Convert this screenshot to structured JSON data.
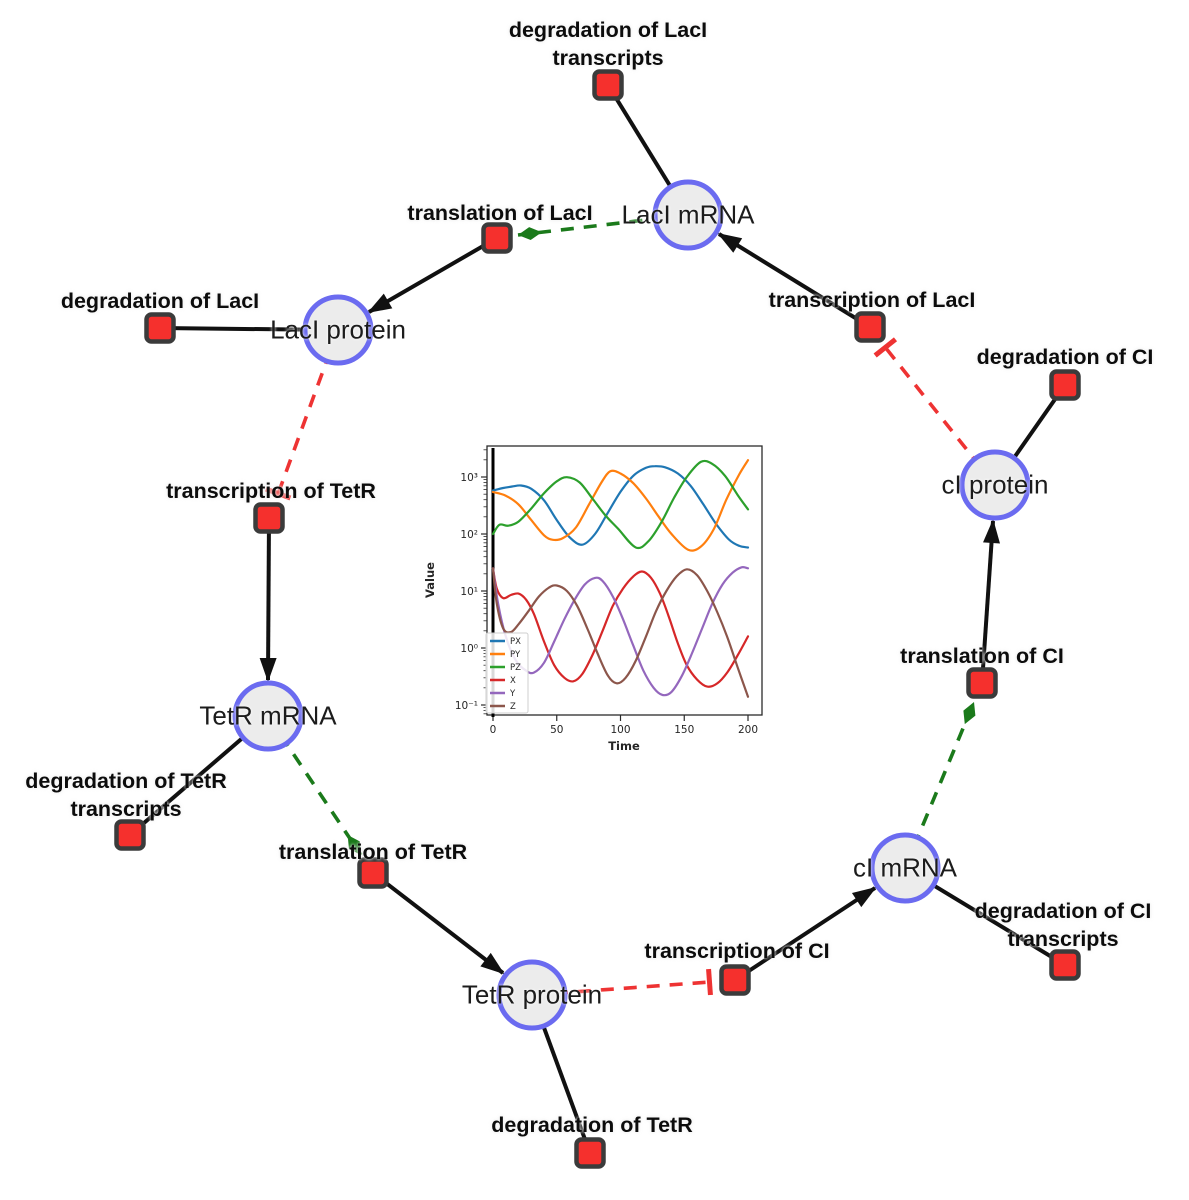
{
  "network": {
    "style": {
      "species_fill": "#ececec",
      "species_border": "#6b6bf0",
      "reaction_fill": "#f5302d",
      "reaction_border": "#3b3b3b",
      "production_edge_color": "#111111",
      "modifier_edge_color": "#1b7a1b",
      "inhibition_edge_color": "#ee3333"
    },
    "species": [
      {
        "id": "laci-mrna",
        "label": "LacI mRNA"
      },
      {
        "id": "laci-protein",
        "label": "LacI protein"
      },
      {
        "id": "tetr-mrna",
        "label": "TetR mRNA"
      },
      {
        "id": "tetr-protein",
        "label": "TetR protein"
      },
      {
        "id": "ci-mrna",
        "label": "cI mRNA"
      },
      {
        "id": "ci-protein",
        "label": "cI protein"
      }
    ],
    "reactions": [
      {
        "id": "deg-laci-transcripts",
        "label": "degradation of LacI transcripts",
        "label_lines": [
          "degradation of LacI",
          "transcripts"
        ]
      },
      {
        "id": "translation-laci",
        "label": "translation of LacI",
        "label_lines": [
          "translation of LacI"
        ]
      },
      {
        "id": "transcription-laci",
        "label": "transcription of LacI",
        "label_lines": [
          "transcription of LacI"
        ]
      },
      {
        "id": "deg-laci",
        "label": "degradation of LacI",
        "label_lines": [
          "degradation of LacI"
        ]
      },
      {
        "id": "transcription-tetr",
        "label": "transcription of TetR",
        "label_lines": [
          "transcription of TetR"
        ]
      },
      {
        "id": "deg-tetr-transcripts",
        "label": "degradation of TetR transcripts",
        "label_lines": [
          "degradation of TetR",
          "transcripts"
        ]
      },
      {
        "id": "translation-tetr",
        "label": "translation of TetR",
        "label_lines": [
          "translation of TetR"
        ]
      },
      {
        "id": "deg-tetr",
        "label": "degradation of TetR",
        "label_lines": [
          "degradation of TetR"
        ]
      },
      {
        "id": "transcription-ci",
        "label": "transcription of CI",
        "label_lines": [
          "transcription of CI"
        ]
      },
      {
        "id": "deg-ci-transcripts",
        "label": "degradation of CI transcripts",
        "label_lines": [
          "degradation of CI",
          "transcripts"
        ]
      },
      {
        "id": "translation-ci",
        "label": "translation of CI",
        "label_lines": [
          "translation of CI"
        ]
      },
      {
        "id": "deg-ci",
        "label": "degradation of CI",
        "label_lines": [
          "degradation of CI"
        ]
      }
    ]
  },
  "chart_data": {
    "type": "line",
    "title": "",
    "xlabel": "Time",
    "ylabel": "Value",
    "yscale": "log",
    "xlim": [
      -5,
      211
    ],
    "ylim_log10": [
      -1.18,
      3.54
    ],
    "x_ticks": [
      "0",
      "50",
      "100",
      "150",
      "200"
    ],
    "y_ticks": [
      "10³",
      "10²",
      "10¹",
      "10⁰",
      "10⁻¹"
    ],
    "legend_position": "lower left",
    "grid": false,
    "annotations": [
      {
        "type": "vline",
        "x": 0,
        "color": "#000000"
      }
    ],
    "series": [
      {
        "name": "PX",
        "color": "#1f77b4",
        "points": [
          [
            0,
            580
          ],
          [
            8,
            640
          ],
          [
            15,
            680
          ],
          [
            22,
            710
          ],
          [
            30,
            620
          ],
          [
            40,
            390
          ],
          [
            50,
            175
          ],
          [
            60,
            88
          ],
          [
            70,
            65
          ],
          [
            80,
            100
          ],
          [
            90,
            235
          ],
          [
            100,
            550
          ],
          [
            110,
            1050
          ],
          [
            120,
            1450
          ],
          [
            127,
            1550
          ],
          [
            135,
            1480
          ],
          [
            145,
            1150
          ],
          [
            155,
            700
          ],
          [
            165,
            330
          ],
          [
            175,
            150
          ],
          [
            185,
            80
          ],
          [
            193,
            62
          ],
          [
            200,
            58
          ]
        ]
      },
      {
        "name": "PY",
        "color": "#ff7f0e",
        "points": [
          [
            0,
            545
          ],
          [
            10,
            470
          ],
          [
            20,
            330
          ],
          [
            30,
            175
          ],
          [
            40,
            95
          ],
          [
            47,
            79
          ],
          [
            55,
            85
          ],
          [
            65,
            130
          ],
          [
            75,
            320
          ],
          [
            85,
            800
          ],
          [
            92,
            1260
          ],
          [
            100,
            1150
          ],
          [
            110,
            780
          ],
          [
            120,
            420
          ],
          [
            130,
            200
          ],
          [
            140,
            100
          ],
          [
            153,
            53
          ],
          [
            163,
            60
          ],
          [
            173,
            120
          ],
          [
            183,
            400
          ],
          [
            193,
            1100
          ],
          [
            200,
            1970
          ]
        ]
      },
      {
        "name": "PZ",
        "color": "#2ca02c",
        "points": [
          [
            0,
            100
          ],
          [
            5,
            145
          ],
          [
            12,
            140
          ],
          [
            20,
            165
          ],
          [
            30,
            280
          ],
          [
            40,
            520
          ],
          [
            50,
            840
          ],
          [
            58,
            990
          ],
          [
            68,
            800
          ],
          [
            78,
            420
          ],
          [
            88,
            215
          ],
          [
            98,
            125
          ],
          [
            112,
            58
          ],
          [
            122,
            75
          ],
          [
            132,
            160
          ],
          [
            142,
            430
          ],
          [
            152,
            1000
          ],
          [
            163,
            1840
          ],
          [
            172,
            1700
          ],
          [
            182,
            1050
          ],
          [
            192,
            480
          ],
          [
            200,
            270
          ]
        ]
      },
      {
        "name": "X",
        "color": "#d62728",
        "points": [
          [
            0,
            25
          ],
          [
            3,
            11
          ],
          [
            8,
            7.5
          ],
          [
            14,
            8.5
          ],
          [
            20,
            9
          ],
          [
            26,
            7
          ],
          [
            32,
            4
          ],
          [
            40,
            1.3
          ],
          [
            48,
            0.5
          ],
          [
            56,
            0.3
          ],
          [
            63,
            0.26
          ],
          [
            70,
            0.35
          ],
          [
            78,
            0.75
          ],
          [
            86,
            2
          ],
          [
            94,
            5.5
          ],
          [
            102,
            11
          ],
          [
            110,
            18
          ],
          [
            117,
            22
          ],
          [
            124,
            17
          ],
          [
            131,
            9
          ],
          [
            138,
            3.5
          ],
          [
            145,
            1.2
          ],
          [
            152,
            0.5
          ],
          [
            160,
            0.28
          ],
          [
            168,
            0.21
          ],
          [
            176,
            0.24
          ],
          [
            184,
            0.38
          ],
          [
            192,
            0.75
          ],
          [
            200,
            1.6
          ]
        ]
      },
      {
        "name": "Y",
        "color": "#9467bd",
        "points": [
          [
            0,
            25
          ],
          [
            4,
            6
          ],
          [
            10,
            1.6
          ],
          [
            18,
            0.6
          ],
          [
            26,
            0.4
          ],
          [
            32,
            0.37
          ],
          [
            40,
            0.55
          ],
          [
            48,
            1.3
          ],
          [
            56,
            3.2
          ],
          [
            64,
            7
          ],
          [
            72,
            13
          ],
          [
            80,
            17
          ],
          [
            86,
            15
          ],
          [
            94,
            8
          ],
          [
            102,
            3.2
          ],
          [
            110,
            1.1
          ],
          [
            118,
            0.4
          ],
          [
            126,
            0.2
          ],
          [
            133,
            0.15
          ],
          [
            140,
            0.17
          ],
          [
            148,
            0.32
          ],
          [
            156,
            0.8
          ],
          [
            164,
            2.2
          ],
          [
            172,
            6
          ],
          [
            180,
            13
          ],
          [
            188,
            21
          ],
          [
            195,
            26
          ],
          [
            200,
            25
          ]
        ]
      },
      {
        "name": "Z",
        "color": "#8c564b",
        "points": [
          [
            0,
            25
          ],
          [
            3,
            6
          ],
          [
            8,
            2.2
          ],
          [
            14,
            1.9
          ],
          [
            20,
            2.6
          ],
          [
            28,
            4.5
          ],
          [
            36,
            8
          ],
          [
            44,
            11.5
          ],
          [
            50,
            12.5
          ],
          [
            58,
            10
          ],
          [
            66,
            5.5
          ],
          [
            74,
            2.2
          ],
          [
            82,
            0.8
          ],
          [
            90,
            0.33
          ],
          [
            97,
            0.24
          ],
          [
            104,
            0.3
          ],
          [
            112,
            0.6
          ],
          [
            120,
            1.6
          ],
          [
            128,
            4.5
          ],
          [
            136,
            10
          ],
          [
            144,
            18
          ],
          [
            152,
            24
          ],
          [
            160,
            19
          ],
          [
            168,
            10
          ],
          [
            176,
            4.2
          ],
          [
            184,
            1.5
          ],
          [
            192,
            0.45
          ],
          [
            200,
            0.14
          ]
        ]
      }
    ]
  }
}
